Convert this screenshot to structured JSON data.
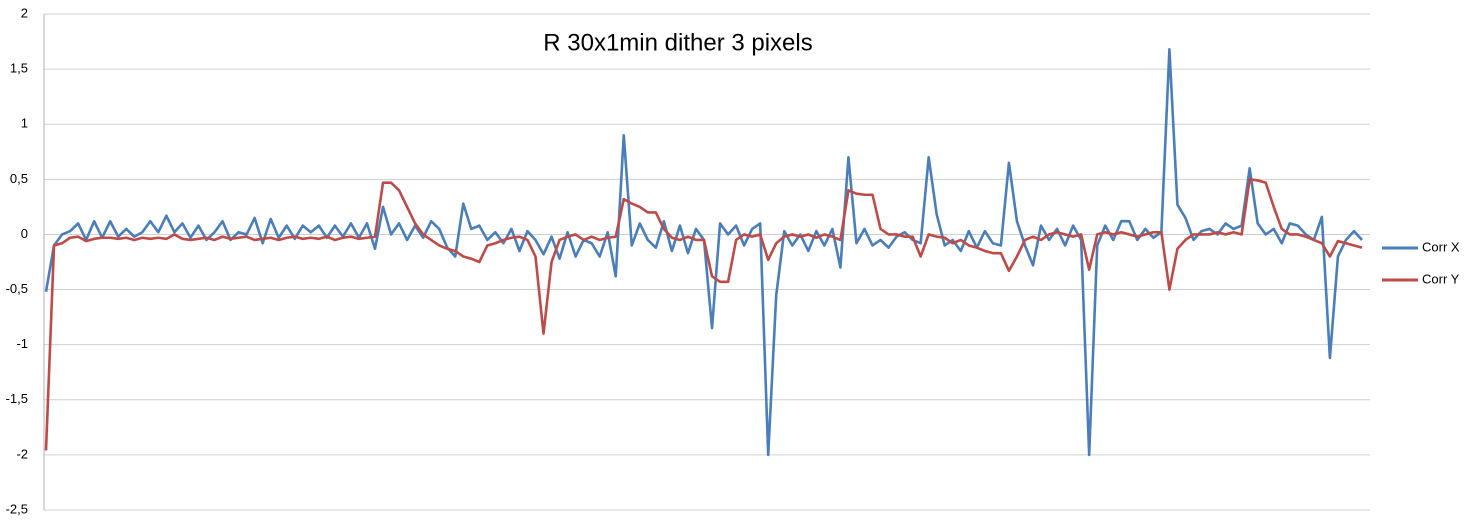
{
  "chart_data": {
    "type": "line",
    "title": "R 30x1min dither 3 pixels",
    "ylim": [
      -2.5,
      2
    ],
    "yticks": [
      {
        "value": -2.5,
        "label": "-2,5"
      },
      -2,
      {
        "value": -1.5,
        "label": "-1,5"
      },
      -1,
      {
        "value": -0.5,
        "label": "-0,5"
      },
      0,
      {
        "value": 0.5,
        "label": "0,5"
      },
      1,
      {
        "value": 1.5,
        "label": "1,5"
      },
      2
    ],
    "grid": true,
    "legend": "right",
    "series": [
      {
        "name": "Corr X",
        "color": "#4a7ebb",
        "values": [
          -0.52,
          -0.1,
          0.0,
          0.03,
          0.1,
          -0.05,
          0.12,
          -0.03,
          0.12,
          -0.02,
          0.05,
          -0.02,
          0.02,
          0.12,
          0.02,
          0.17,
          0.02,
          0.1,
          -0.03,
          0.08,
          -0.05,
          0.02,
          0.12,
          -0.05,
          0.02,
          0.0,
          0.15,
          -0.08,
          0.14,
          -0.03,
          0.08,
          -0.04,
          0.08,
          0.02,
          0.08,
          -0.03,
          0.08,
          -0.02,
          0.1,
          -0.03,
          0.1,
          -0.13,
          0.25,
          0.0,
          0.1,
          -0.05,
          0.08,
          -0.03,
          0.12,
          0.05,
          -0.12,
          -0.2,
          0.28,
          0.05,
          0.08,
          -0.05,
          0.02,
          -0.08,
          0.05,
          -0.15,
          0.03,
          -0.05,
          -0.18,
          -0.02,
          -0.22,
          0.02,
          -0.2,
          -0.05,
          -0.08,
          -0.2,
          0.02,
          -0.38,
          0.9,
          -0.1,
          0.1,
          -0.05,
          -0.12,
          0.12,
          -0.15,
          0.08,
          -0.17,
          0.05,
          -0.05,
          -0.85,
          0.1,
          0.0,
          0.08,
          -0.1,
          0.05,
          0.1,
          -2.0,
          -0.55,
          0.03,
          -0.1,
          0.0,
          -0.15,
          0.03,
          -0.1,
          0.05,
          -0.3,
          0.7,
          -0.08,
          0.05,
          -0.1,
          -0.05,
          -0.12,
          -0.02,
          0.02,
          -0.05,
          -0.08,
          0.7,
          0.18,
          -0.1,
          -0.05,
          -0.15,
          0.03,
          -0.12,
          0.03,
          -0.08,
          -0.1,
          0.65,
          0.12,
          -0.1,
          -0.28,
          0.08,
          -0.05,
          0.05,
          -0.1,
          0.08,
          -0.05,
          -2.0,
          -0.1,
          0.08,
          -0.05,
          0.12,
          0.12,
          -0.05,
          0.05,
          -0.03,
          0.02,
          1.68,
          0.27,
          0.15,
          -0.05,
          0.03,
          0.05,
          0.0,
          0.1,
          0.05,
          0.08,
          0.6,
          0.1,
          0.0,
          0.05,
          -0.08,
          0.1,
          0.08,
          0.0,
          -0.05,
          0.16,
          -1.12,
          -0.2,
          -0.05,
          0.03,
          -0.05
        ]
      },
      {
        "name": "Corr Y",
        "color": "#be4b48",
        "values": [
          -1.96,
          -0.1,
          -0.08,
          -0.03,
          -0.02,
          -0.06,
          -0.04,
          -0.03,
          -0.03,
          -0.04,
          -0.03,
          -0.05,
          -0.03,
          -0.04,
          -0.03,
          -0.04,
          0.0,
          -0.04,
          -0.05,
          -0.04,
          -0.03,
          -0.05,
          -0.02,
          -0.04,
          -0.03,
          -0.02,
          -0.05,
          -0.04,
          -0.03,
          -0.05,
          -0.03,
          -0.02,
          -0.04,
          -0.03,
          -0.04,
          -0.02,
          -0.05,
          -0.03,
          -0.02,
          -0.04,
          -0.03,
          -0.02,
          0.47,
          0.47,
          0.4,
          0.25,
          0.1,
          0.0,
          -0.05,
          -0.1,
          -0.13,
          -0.15,
          -0.2,
          -0.22,
          -0.25,
          -0.1,
          -0.08,
          -0.05,
          -0.03,
          -0.02,
          -0.05,
          -0.2,
          -0.9,
          -0.25,
          -0.05,
          -0.02,
          0.0,
          -0.05,
          -0.02,
          -0.05,
          -0.03,
          -0.02,
          0.32,
          0.28,
          0.25,
          0.2,
          0.2,
          0.05,
          -0.03,
          -0.05,
          -0.02,
          -0.05,
          -0.05,
          -0.38,
          -0.43,
          -0.43,
          -0.05,
          0.0,
          -0.02,
          0.0,
          -0.23,
          -0.08,
          -0.02,
          0.0,
          -0.02,
          0.0,
          -0.03,
          0.0,
          -0.02,
          -0.05,
          0.4,
          0.37,
          0.36,
          0.36,
          0.05,
          0.0,
          0.0,
          -0.02,
          -0.02,
          -0.2,
          0.0,
          -0.02,
          -0.03,
          -0.08,
          -0.05,
          -0.1,
          -0.12,
          -0.15,
          -0.17,
          -0.17,
          -0.33,
          -0.2,
          -0.05,
          -0.02,
          -0.05,
          0.0,
          0.02,
          0.0,
          -0.02,
          0.0,
          -0.32,
          0.0,
          0.02,
          0.0,
          0.02,
          0.0,
          -0.02,
          0.0,
          0.02,
          0.02,
          -0.5,
          -0.13,
          -0.05,
          0.0,
          0.0,
          0.0,
          0.02,
          0.0,
          0.02,
          0.0,
          0.5,
          0.49,
          0.47,
          0.25,
          0.05,
          0.0,
          0.0,
          -0.02,
          -0.05,
          -0.08,
          -0.2,
          -0.06,
          -0.08,
          -0.1,
          -0.12
        ]
      }
    ]
  }
}
